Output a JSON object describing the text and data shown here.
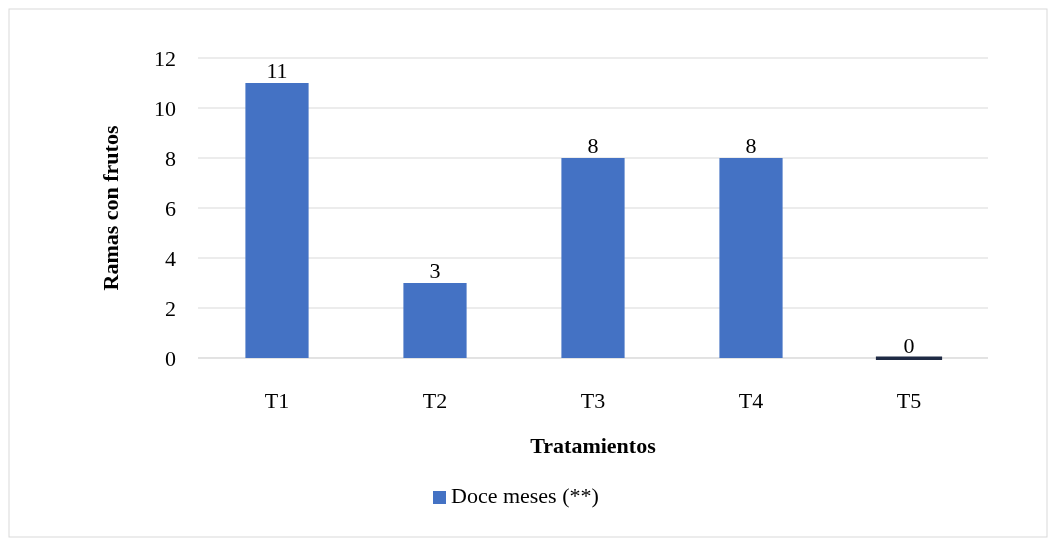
{
  "chart_data": {
    "type": "bar",
    "xlabel": "Tratamientos",
    "ylabel": "Ramas con frutos",
    "categories": [
      "T1",
      "T2",
      "T3",
      "T4",
      "T5"
    ],
    "series": [
      {
        "name": "Doce meses (**)",
        "color": "#4472c4",
        "values": [
          11,
          3,
          8,
          8,
          0
        ]
      }
    ],
    "ylim": [
      0,
      12
    ],
    "yticks": [
      0,
      2,
      4,
      6,
      8,
      10,
      12
    ],
    "grid": "y",
    "legend": "bottom",
    "data_labels": true
  }
}
